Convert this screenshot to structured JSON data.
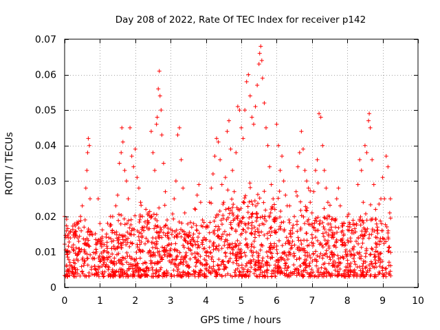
{
  "chart_data": {
    "type": "scatter",
    "title": "Day 208 of 2022, Rate Of TEC Index for receiver p142",
    "xlabel": "GPS time / hours",
    "ylabel": "ROTI / TECUs",
    "xlim": [
      0,
      10
    ],
    "ylim": [
      0,
      0.07
    ],
    "x_ticks": [
      "0",
      "1",
      "2",
      "3",
      "4",
      "5",
      "6",
      "7",
      "8",
      "9",
      "10"
    ],
    "y_ticks": [
      "0",
      "0.01",
      "0.02",
      "0.03",
      "0.04",
      "0.05",
      "0.06",
      "0.07"
    ],
    "grid": true,
    "marker": "+",
    "series_color": "#ff0000",
    "series": [
      {
        "name": "ROTI",
        "points": [
          [
            0.0,
            0.02
          ],
          [
            0.05,
            0.01
          ],
          [
            0.1,
            0.014
          ],
          [
            0.15,
            0.007
          ],
          [
            0.2,
            0.006
          ],
          [
            0.25,
            0.012
          ],
          [
            0.3,
            0.005
          ],
          [
            0.35,
            0.009
          ],
          [
            0.4,
            0.013
          ],
          [
            0.45,
            0.02
          ],
          [
            0.5,
            0.023
          ],
          [
            0.55,
            0.017
          ],
          [
            0.6,
            0.028
          ],
          [
            0.63,
            0.033
          ],
          [
            0.65,
            0.038
          ],
          [
            0.67,
            0.042
          ],
          [
            0.7,
            0.04
          ],
          [
            0.72,
            0.025
          ],
          [
            0.75,
            0.015
          ],
          [
            0.8,
            0.008
          ],
          [
            0.85,
            0.006
          ],
          [
            0.9,
            0.01
          ],
          [
            0.95,
            0.025
          ],
          [
            1.0,
            0.018
          ],
          [
            1.05,
            0.012
          ],
          [
            1.1,
            0.008
          ],
          [
            1.15,
            0.006
          ],
          [
            1.2,
            0.01
          ],
          [
            1.25,
            0.014
          ],
          [
            1.3,
            0.02
          ],
          [
            1.35,
            0.016
          ],
          [
            1.4,
            0.011
          ],
          [
            1.45,
            0.023
          ],
          [
            1.5,
            0.026
          ],
          [
            1.55,
            0.035
          ],
          [
            1.6,
            0.038
          ],
          [
            1.62,
            0.045
          ],
          [
            1.65,
            0.041
          ],
          [
            1.7,
            0.033
          ],
          [
            1.75,
            0.03
          ],
          [
            1.8,
            0.025
          ],
          [
            1.85,
            0.045
          ],
          [
            1.9,
            0.037
          ],
          [
            1.95,
            0.034
          ],
          [
            2.0,
            0.039
          ],
          [
            2.05,
            0.031
          ],
          [
            2.1,
            0.028
          ],
          [
            2.15,
            0.024
          ],
          [
            2.2,
            0.02
          ],
          [
            2.25,
            0.017
          ],
          [
            2.3,
            0.022
          ],
          [
            2.35,
            0.013
          ],
          [
            2.4,
            0.01
          ],
          [
            2.45,
            0.044
          ],
          [
            2.5,
            0.038
          ],
          [
            2.55,
            0.033
          ],
          [
            2.6,
            0.046
          ],
          [
            2.62,
            0.048
          ],
          [
            2.65,
            0.056
          ],
          [
            2.68,
            0.061
          ],
          [
            2.7,
            0.054
          ],
          [
            2.73,
            0.05
          ],
          [
            2.75,
            0.043
          ],
          [
            2.8,
            0.035
          ],
          [
            2.85,
            0.027
          ],
          [
            2.9,
            0.019
          ],
          [
            2.95,
            0.012
          ],
          [
            3.0,
            0.007
          ],
          [
            3.05,
            0.016
          ],
          [
            3.1,
            0.025
          ],
          [
            3.15,
            0.03
          ],
          [
            3.2,
            0.043
          ],
          [
            3.25,
            0.045
          ],
          [
            3.3,
            0.036
          ],
          [
            3.35,
            0.028
          ],
          [
            3.4,
            0.021
          ],
          [
            3.45,
            0.015
          ],
          [
            3.5,
            0.011
          ],
          [
            3.55,
            0.008
          ],
          [
            3.6,
            0.012
          ],
          [
            3.65,
            0.018
          ],
          [
            3.7,
            0.022
          ],
          [
            3.75,
            0.026
          ],
          [
            3.8,
            0.029
          ],
          [
            3.85,
            0.024
          ],
          [
            3.9,
            0.019
          ],
          [
            3.95,
            0.014
          ],
          [
            4.0,
            0.01
          ],
          [
            4.05,
            0.017
          ],
          [
            4.1,
            0.024
          ],
          [
            4.15,
            0.028
          ],
          [
            4.2,
            0.032
          ],
          [
            4.25,
            0.037
          ],
          [
            4.3,
            0.042
          ],
          [
            4.35,
            0.041
          ],
          [
            4.4,
            0.036
          ],
          [
            4.45,
            0.029
          ],
          [
            4.5,
            0.024
          ],
          [
            4.55,
            0.031
          ],
          [
            4.6,
            0.044
          ],
          [
            4.65,
            0.047
          ],
          [
            4.7,
            0.039
          ],
          [
            4.75,
            0.033
          ],
          [
            4.8,
            0.027
          ],
          [
            4.85,
            0.038
          ],
          [
            4.9,
            0.051
          ],
          [
            4.95,
            0.05
          ],
          [
            5.0,
            0.045
          ],
          [
            5.05,
            0.042
          ],
          [
            5.1,
            0.05
          ],
          [
            5.15,
            0.058
          ],
          [
            5.2,
            0.06
          ],
          [
            5.25,
            0.054
          ],
          [
            5.3,
            0.048
          ],
          [
            5.35,
            0.046
          ],
          [
            5.4,
            0.051
          ],
          [
            5.45,
            0.057
          ],
          [
            5.5,
            0.063
          ],
          [
            5.52,
            0.066
          ],
          [
            5.55,
            0.068
          ],
          [
            5.58,
            0.064
          ],
          [
            5.6,
            0.059
          ],
          [
            5.65,
            0.052
          ],
          [
            5.7,
            0.045
          ],
          [
            5.75,
            0.04
          ],
          [
            5.8,
            0.034
          ],
          [
            5.85,
            0.029
          ],
          [
            5.9,
            0.025
          ],
          [
            5.95,
            0.022
          ],
          [
            6.0,
            0.046
          ],
          [
            6.05,
            0.04
          ],
          [
            6.1,
            0.033
          ],
          [
            6.15,
            0.037
          ],
          [
            6.2,
            0.03
          ],
          [
            6.25,
            0.026
          ],
          [
            6.3,
            0.023
          ],
          [
            6.35,
            0.019
          ],
          [
            6.4,
            0.016
          ],
          [
            6.45,
            0.013
          ],
          [
            6.5,
            0.02
          ],
          [
            6.55,
            0.027
          ],
          [
            6.6,
            0.034
          ],
          [
            6.65,
            0.038
          ],
          [
            6.7,
            0.044
          ],
          [
            6.75,
            0.039
          ],
          [
            6.8,
            0.033
          ],
          [
            6.85,
            0.03
          ],
          [
            6.9,
            0.028
          ],
          [
            6.95,
            0.024
          ],
          [
            7.0,
            0.021
          ],
          [
            7.05,
            0.027
          ],
          [
            7.1,
            0.033
          ],
          [
            7.15,
            0.036
          ],
          [
            7.2,
            0.049
          ],
          [
            7.25,
            0.048
          ],
          [
            7.3,
            0.04
          ],
          [
            7.35,
            0.033
          ],
          [
            7.4,
            0.028
          ],
          [
            7.45,
            0.024
          ],
          [
            7.5,
            0.02
          ],
          [
            7.55,
            0.017
          ],
          [
            7.6,
            0.014
          ],
          [
            7.65,
            0.019
          ],
          [
            7.7,
            0.025
          ],
          [
            7.75,
            0.028
          ],
          [
            7.8,
            0.023
          ],
          [
            7.85,
            0.018
          ],
          [
            7.9,
            0.015
          ],
          [
            7.95,
            0.012
          ],
          [
            8.0,
            0.02
          ],
          [
            8.05,
            0.016
          ],
          [
            8.1,
            0.013
          ],
          [
            8.15,
            0.011
          ],
          [
            8.2,
            0.009
          ],
          [
            8.25,
            0.013
          ],
          [
            8.3,
            0.029
          ],
          [
            8.35,
            0.036
          ],
          [
            8.4,
            0.033
          ],
          [
            8.45,
            0.024
          ],
          [
            8.5,
            0.04
          ],
          [
            8.55,
            0.038
          ],
          [
            8.6,
            0.047
          ],
          [
            8.62,
            0.049
          ],
          [
            8.65,
            0.045
          ],
          [
            8.7,
            0.036
          ],
          [
            8.75,
            0.029
          ],
          [
            8.8,
            0.022
          ],
          [
            8.85,
            0.017
          ],
          [
            8.9,
            0.013
          ],
          [
            8.95,
            0.025
          ],
          [
            9.0,
            0.031
          ],
          [
            9.05,
            0.025
          ],
          [
            9.1,
            0.037
          ],
          [
            9.15,
            0.034
          ],
          [
            9.2,
            0.021
          ],
          [
            9.22,
            0.025
          ]
        ]
      }
    ],
    "band": {
      "x_range": [
        0,
        9.25
      ],
      "y_floor": 0.003,
      "y_ceiling_by_hour": [
        [
          0,
          0.016
        ],
        [
          0.5,
          0.02
        ],
        [
          1,
          0.014
        ],
        [
          1.5,
          0.018
        ],
        [
          2,
          0.02
        ],
        [
          2.5,
          0.022
        ],
        [
          3,
          0.016
        ],
        [
          3.5,
          0.017
        ],
        [
          4,
          0.018
        ],
        [
          4.5,
          0.022
        ],
        [
          5,
          0.024
        ],
        [
          5.5,
          0.025
        ],
        [
          6,
          0.022
        ],
        [
          6.5,
          0.023
        ],
        [
          7,
          0.023
        ],
        [
          7.5,
          0.02
        ],
        [
          8,
          0.018
        ],
        [
          8.5,
          0.021
        ],
        [
          9,
          0.02
        ],
        [
          9.25,
          0.018
        ]
      ]
    }
  }
}
